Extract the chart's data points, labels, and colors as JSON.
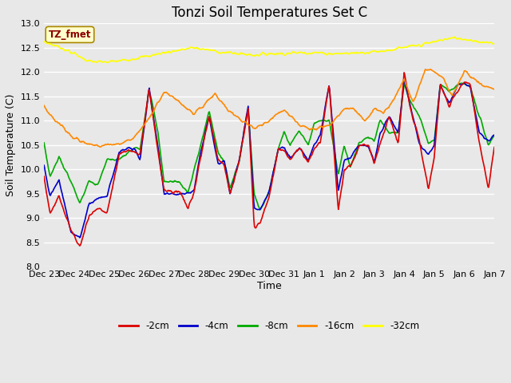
{
  "title": "Tonzi Soil Temperatures Set C",
  "xlabel": "Time",
  "ylabel": "Soil Temperature (C)",
  "ylim": [
    8.0,
    13.0
  ],
  "yticks": [
    8.0,
    8.5,
    9.0,
    9.5,
    10.0,
    10.5,
    11.0,
    11.5,
    12.0,
    12.5,
    13.0
  ],
  "xtick_labels": [
    "Dec 23",
    "Dec 24",
    "Dec 25",
    "Dec 26",
    "Dec 27",
    "Dec 28",
    "Dec 29",
    "Dec 30",
    "Dec 31",
    "Jan 1",
    "Jan 2",
    "Jan 3",
    "Jan 4",
    "Jan 5",
    "Jan 6",
    "Jan 7"
  ],
  "legend_label": "TZ_fmet",
  "color_neg2cm": "#dd0000",
  "color_neg4cm": "#0000cc",
  "color_neg8cm": "#00aa00",
  "color_neg16cm": "#ff8800",
  "color_neg32cm": "#ffff00",
  "label_neg2cm": "-2cm",
  "label_neg4cm": "-4cm",
  "label_neg8cm": "-8cm",
  "label_neg16cm": "-16cm",
  "label_neg32cm": "-32cm",
  "bg_color": "#e8e8e8",
  "grid_color": "#ffffff",
  "title_fontsize": 12,
  "axis_fontsize": 9,
  "tick_fontsize": 8
}
